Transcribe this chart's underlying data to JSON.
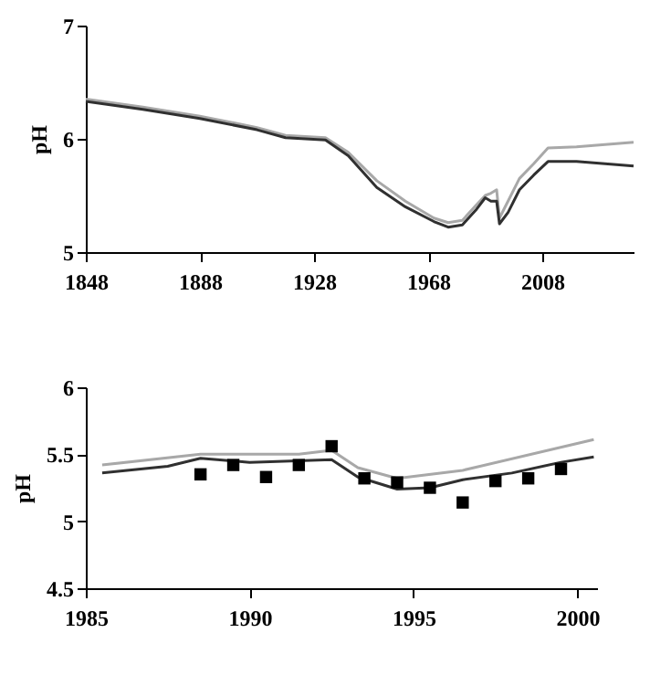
{
  "chart_data": [
    {
      "type": "line",
      "ylabel": "pH",
      "xlim": [
        1848,
        2040
      ],
      "xticks": [
        1848,
        1888,
        1928,
        1968,
        2008
      ],
      "ylim": [
        5,
        7
      ],
      "yticks": [
        5,
        6,
        7
      ],
      "grid": false,
      "marker": "none",
      "line_style": "solid",
      "series": [
        {
          "color": "#a8a8a8",
          "x": [
            1848,
            1868,
            1888,
            1908,
            1918,
            1932,
            1940,
            1950,
            1960,
            1970,
            1975,
            1980,
            1985,
            1988,
            1990,
            1992,
            1993,
            1996,
            2000,
            2005,
            2010,
            2020,
            2030,
            2040
          ],
          "values": [
            6.35,
            6.28,
            6.2,
            6.1,
            6.03,
            6.01,
            5.88,
            5.63,
            5.45,
            5.3,
            5.26,
            5.28,
            5.42,
            5.5,
            5.52,
            5.55,
            5.3,
            5.45,
            5.65,
            5.78,
            5.92,
            5.93,
            5.95,
            5.97
          ]
        },
        {
          "color": "#303030",
          "x": [
            1848,
            1868,
            1888,
            1908,
            1918,
            1932,
            1940,
            1950,
            1960,
            1970,
            1975,
            1980,
            1985,
            1988,
            1990,
            1992,
            1993,
            1996,
            2000,
            2005,
            2010,
            2020,
            2030,
            2040
          ],
          "values": [
            6.33,
            6.26,
            6.18,
            6.08,
            6.01,
            5.99,
            5.85,
            5.57,
            5.4,
            5.27,
            5.22,
            5.24,
            5.38,
            5.48,
            5.45,
            5.45,
            5.25,
            5.35,
            5.55,
            5.68,
            5.8,
            5.8,
            5.78,
            5.76
          ]
        }
      ]
    },
    {
      "type": "line",
      "ylabel": "pH",
      "xlim": [
        1985,
        2000.6
      ],
      "xticks": [
        1985,
        1990,
        1995,
        2000
      ],
      "ylim": [
        4.5,
        6
      ],
      "yticks": [
        4.5,
        5,
        5.5,
        6
      ],
      "grid": false,
      "line_style": "solid",
      "series": [
        {
          "color": "#a8a8a8",
          "marker": "none",
          "x": [
            1985.5,
            1988.5,
            1991.5,
            1992.5,
            1993.3,
            1994.5,
            1996.5,
            2000.5
          ],
          "values": [
            5.42,
            5.5,
            5.5,
            5.53,
            5.4,
            5.32,
            5.38,
            5.61
          ]
        },
        {
          "color": "#303030",
          "marker": "none",
          "x": [
            1985.5,
            1987.5,
            1988.5,
            1990,
            1992.5,
            1993.3,
            1994.5,
            1995.5,
            1996.5,
            1998,
            1999.5,
            2000.5
          ],
          "values": [
            5.36,
            5.41,
            5.47,
            5.44,
            5.46,
            5.33,
            5.24,
            5.25,
            5.31,
            5.36,
            5.44,
            5.48
          ]
        },
        {
          "type": "scatter",
          "color": "#000000",
          "marker": "square",
          "x": [
            1988.5,
            1989.5,
            1990.5,
            1991.5,
            1992.5,
            1993.5,
            1994.5,
            1995.5,
            1996.5,
            1997.5,
            1998.5,
            1999.5
          ],
          "values": [
            5.35,
            5.42,
            5.33,
            5.42,
            5.56,
            5.32,
            5.29,
            5.25,
            5.14,
            5.3,
            5.32,
            5.39
          ]
        }
      ]
    }
  ]
}
